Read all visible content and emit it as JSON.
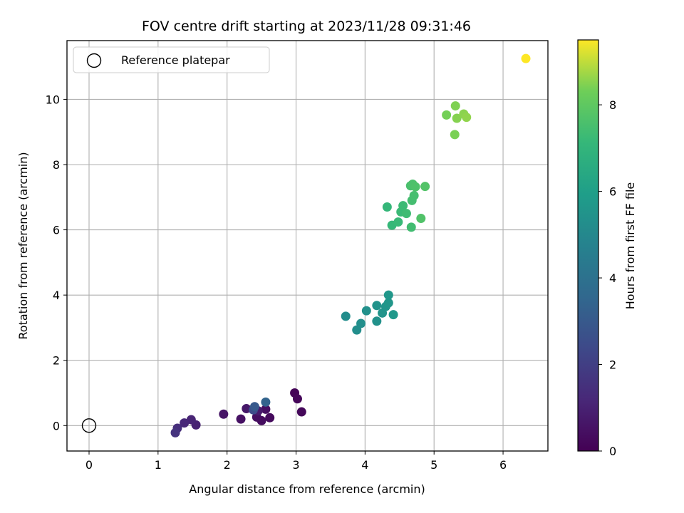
{
  "chart_data": {
    "type": "scatter",
    "title": "FOV centre drift starting at 2023/11/28 09:31:46",
    "xlabel": "Angular distance from reference (arcmin)",
    "ylabel": "Rotation from reference (arcmin)",
    "xlim": [
      -0.32,
      6.65
    ],
    "ylim": [
      -0.78,
      11.8
    ],
    "x_ticks": [
      0,
      1,
      2,
      3,
      4,
      5,
      6
    ],
    "y_ticks": [
      0,
      2,
      4,
      6,
      8,
      10
    ],
    "grid": true,
    "colormap": "viridis",
    "colorbar": {
      "label": "Hours from first FF file",
      "range": [
        0,
        9.5
      ],
      "ticks": [
        0,
        2,
        4,
        6,
        8
      ]
    },
    "legend": {
      "placement": "top-left",
      "entries": [
        "Reference platepar"
      ]
    },
    "reference_point": {
      "x": 0,
      "y": 0,
      "label": "Reference platepar"
    },
    "points": [
      {
        "x": 2.98,
        "y": 1.0,
        "hours": 0.1
      },
      {
        "x": 3.02,
        "y": 0.82,
        "hours": 0.15
      },
      {
        "x": 3.08,
        "y": 0.42,
        "hours": 0.2
      },
      {
        "x": 2.62,
        "y": 0.24,
        "hours": 0.3
      },
      {
        "x": 2.5,
        "y": 0.15,
        "hours": 0.35
      },
      {
        "x": 2.43,
        "y": 0.26,
        "hours": 0.4
      },
      {
        "x": 2.56,
        "y": 0.5,
        "hours": 0.45
      },
      {
        "x": 2.2,
        "y": 0.2,
        "hours": 0.5
      },
      {
        "x": 1.95,
        "y": 0.35,
        "hours": 0.6
      },
      {
        "x": 2.28,
        "y": 0.52,
        "hours": 0.7
      },
      {
        "x": 2.45,
        "y": 0.45,
        "hours": 0.8
      },
      {
        "x": 1.55,
        "y": 0.02,
        "hours": 1.0
      },
      {
        "x": 1.48,
        "y": 0.18,
        "hours": 1.1
      },
      {
        "x": 1.38,
        "y": 0.08,
        "hours": 1.2
      },
      {
        "x": 1.28,
        "y": -0.08,
        "hours": 1.4
      },
      {
        "x": 1.25,
        "y": -0.22,
        "hours": 1.6
      },
      {
        "x": 2.38,
        "y": 0.48,
        "hours": 2.5
      },
      {
        "x": 2.4,
        "y": 0.58,
        "hours": 3.0
      },
      {
        "x": 2.56,
        "y": 0.72,
        "hours": 3.4
      },
      {
        "x": 3.72,
        "y": 3.35,
        "hours": 5.2
      },
      {
        "x": 3.88,
        "y": 2.93,
        "hours": 5.25
      },
      {
        "x": 3.94,
        "y": 3.13,
        "hours": 5.3
      },
      {
        "x": 4.02,
        "y": 3.52,
        "hours": 5.35
      },
      {
        "x": 4.17,
        "y": 3.2,
        "hours": 5.4
      },
      {
        "x": 4.17,
        "y": 3.68,
        "hours": 5.45
      },
      {
        "x": 4.25,
        "y": 3.45,
        "hours": 5.5
      },
      {
        "x": 4.3,
        "y": 3.65,
        "hours": 5.55
      },
      {
        "x": 4.34,
        "y": 3.76,
        "hours": 5.6
      },
      {
        "x": 4.34,
        "y": 4.0,
        "hours": 5.65
      },
      {
        "x": 4.41,
        "y": 3.4,
        "hours": 5.7
      },
      {
        "x": 4.32,
        "y": 6.7,
        "hours": 7.1
      },
      {
        "x": 4.39,
        "y": 6.14,
        "hours": 7.15
      },
      {
        "x": 4.48,
        "y": 6.24,
        "hours": 7.2
      },
      {
        "x": 4.52,
        "y": 6.55,
        "hours": 7.25
      },
      {
        "x": 4.55,
        "y": 6.74,
        "hours": 7.3
      },
      {
        "x": 4.6,
        "y": 6.5,
        "hours": 7.35
      },
      {
        "x": 4.67,
        "y": 6.08,
        "hours": 7.4
      },
      {
        "x": 4.68,
        "y": 6.9,
        "hours": 7.45
      },
      {
        "x": 4.71,
        "y": 7.05,
        "hours": 7.5
      },
      {
        "x": 4.66,
        "y": 7.35,
        "hours": 7.55
      },
      {
        "x": 4.69,
        "y": 7.4,
        "hours": 7.6
      },
      {
        "x": 4.73,
        "y": 7.32,
        "hours": 7.65
      },
      {
        "x": 4.81,
        "y": 6.35,
        "hours": 7.7
      },
      {
        "x": 4.87,
        "y": 7.33,
        "hours": 7.75
      },
      {
        "x": 5.18,
        "y": 9.52,
        "hours": 8.35
      },
      {
        "x": 5.3,
        "y": 8.92,
        "hours": 8.4
      },
      {
        "x": 5.31,
        "y": 9.8,
        "hours": 8.45
      },
      {
        "x": 5.33,
        "y": 9.42,
        "hours": 8.5
      },
      {
        "x": 5.43,
        "y": 9.55,
        "hours": 8.55
      },
      {
        "x": 5.47,
        "y": 9.45,
        "hours": 8.6
      },
      {
        "x": 6.33,
        "y": 11.25,
        "hours": 9.5
      }
    ]
  }
}
